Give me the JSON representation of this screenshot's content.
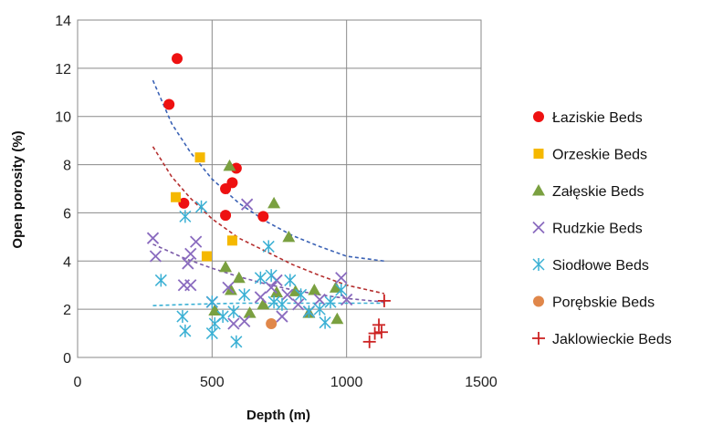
{
  "chart_data": {
    "type": "scatter",
    "xlabel": "Depth (m)",
    "ylabel": "Open porosity (%)",
    "xlim": [
      0,
      1500
    ],
    "ylim": [
      0,
      14
    ],
    "xticks": [
      "0",
      "500",
      "1000",
      "1500"
    ],
    "yticks": [
      "0",
      "2",
      "4",
      "6",
      "8",
      "10",
      "12",
      "14"
    ],
    "grid": true,
    "legend_position": "right",
    "series": [
      {
        "name": "Łaziskie Beds",
        "marker": "circle",
        "color": "#ee1111",
        "points": [
          [
            370,
            12.4
          ],
          [
            340,
            10.5
          ],
          [
            395,
            6.4
          ],
          [
            590,
            7.85
          ],
          [
            575,
            7.25
          ],
          [
            550,
            7.0
          ],
          [
            550,
            5.9
          ],
          [
            690,
            5.85
          ]
        ]
      },
      {
        "name": "Orzeskie Beds",
        "marker": "square",
        "color": "#f5b800",
        "points": [
          [
            455,
            8.3
          ],
          [
            365,
            6.65
          ],
          [
            575,
            4.85
          ],
          [
            480,
            4.2
          ]
        ]
      },
      {
        "name": "Załęskie Beds",
        "marker": "triangle",
        "color": "#7aa040",
        "points": [
          [
            565,
            7.95
          ],
          [
            730,
            6.4
          ],
          [
            785,
            5.0
          ],
          [
            550,
            3.75
          ],
          [
            600,
            3.3
          ],
          [
            570,
            2.8
          ],
          [
            740,
            2.7
          ],
          [
            810,
            2.75
          ],
          [
            880,
            2.8
          ],
          [
            960,
            2.9
          ],
          [
            510,
            1.95
          ],
          [
            640,
            1.85
          ],
          [
            860,
            1.85
          ],
          [
            965,
            1.6
          ],
          [
            690,
            2.2
          ]
        ]
      },
      {
        "name": "Rudzkie Beds",
        "marker": "x",
        "color": "#8a6bbf",
        "points": [
          [
            280,
            4.95
          ],
          [
            290,
            4.2
          ],
          [
            440,
            4.8
          ],
          [
            420,
            4.3
          ],
          [
            410,
            3.9
          ],
          [
            395,
            3.0
          ],
          [
            420,
            3.0
          ],
          [
            630,
            6.35
          ],
          [
            560,
            2.9
          ],
          [
            680,
            2.5
          ],
          [
            720,
            2.9
          ],
          [
            740,
            3.2
          ],
          [
            760,
            1.7
          ],
          [
            780,
            2.6
          ],
          [
            820,
            2.2
          ],
          [
            860,
            1.9
          ],
          [
            900,
            2.4
          ],
          [
            980,
            3.3
          ],
          [
            1000,
            2.4
          ],
          [
            500,
            2.3
          ],
          [
            620,
            1.5
          ],
          [
            580,
            1.4
          ]
        ]
      },
      {
        "name": "Siodłowe Beds",
        "marker": "asterisk",
        "color": "#3ab0d4",
        "points": [
          [
            310,
            3.2
          ],
          [
            400,
            5.85
          ],
          [
            460,
            6.25
          ],
          [
            390,
            1.7
          ],
          [
            400,
            1.1
          ],
          [
            510,
            1.4
          ],
          [
            500,
            1.0
          ],
          [
            500,
            2.3
          ],
          [
            540,
            1.7
          ],
          [
            580,
            1.9
          ],
          [
            590,
            0.65
          ],
          [
            620,
            2.6
          ],
          [
            680,
            3.3
          ],
          [
            710,
            4.6
          ],
          [
            720,
            3.4
          ],
          [
            730,
            2.3
          ],
          [
            760,
            2.2
          ],
          [
            790,
            3.2
          ],
          [
            830,
            2.6
          ],
          [
            860,
            1.9
          ],
          [
            900,
            2.0
          ],
          [
            920,
            1.45
          ],
          [
            940,
            2.3
          ],
          [
            980,
            2.8
          ]
        ]
      },
      {
        "name": "Porębskie Beds",
        "marker": "circle",
        "color": "#e0874a",
        "points": [
          [
            720,
            1.4
          ]
        ]
      },
      {
        "name": "Jaklowieckie Beds",
        "marker": "plus",
        "color": "#cc2222",
        "points": [
          [
            1140,
            2.35
          ],
          [
            1120,
            1.35
          ],
          [
            1130,
            1.05
          ],
          [
            1105,
            1.0
          ],
          [
            1085,
            0.65
          ]
        ]
      }
    ],
    "trend_lines": [
      {
        "color": "#3b62b5",
        "x_range": [
          280,
          1140
        ],
        "x": [
          280,
          350,
          420,
          500,
          600,
          700,
          800,
          900,
          1000,
          1140
        ],
        "y": [
          11.5,
          9.7,
          8.5,
          7.4,
          6.4,
          5.65,
          5.05,
          4.6,
          4.2,
          4.0
        ]
      },
      {
        "color": "#b53030",
        "x_range": [
          280,
          1140
        ],
        "x": [
          280,
          350,
          420,
          500,
          600,
          700,
          800,
          900,
          1000,
          1140
        ],
        "y": [
          8.75,
          7.5,
          6.6,
          5.75,
          4.95,
          4.4,
          3.85,
          3.4,
          3.0,
          2.65
        ]
      },
      {
        "color": "#7a5aa8",
        "x_range": [
          280,
          1140
        ],
        "x": [
          280,
          400,
          500,
          600,
          700,
          800,
          900,
          1000,
          1140
        ],
        "y": [
          4.7,
          4.1,
          3.7,
          3.35,
          3.05,
          2.8,
          2.6,
          2.45,
          2.3
        ]
      },
      {
        "color": "#3ab0d4",
        "x_range": [
          280,
          1140
        ],
        "x": [
          280,
          400,
          600,
          800,
          1000,
          1140
        ],
        "y": [
          2.15,
          2.2,
          2.25,
          2.25,
          2.25,
          2.25
        ]
      }
    ]
  }
}
